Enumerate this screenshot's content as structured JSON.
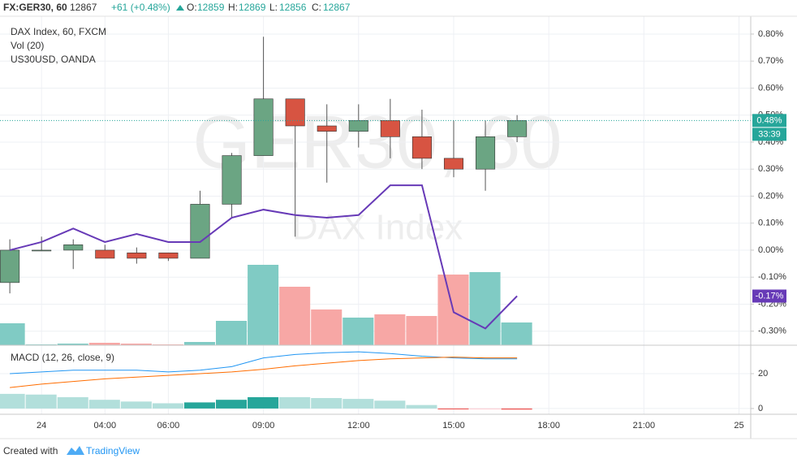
{
  "header": {
    "symbol": "FX:GER30, 60",
    "price": 12867,
    "change": "+61 (+0.48%)",
    "ohlc": [
      {
        "label": "O:",
        "value": 12859
      },
      {
        "label": "H:",
        "value": 12869
      },
      {
        "label": "L:",
        "value": 12856
      },
      {
        "label": "C:",
        "value": 12867
      }
    ]
  },
  "chart_data": {
    "type": "candlestick",
    "watermark": [
      "GER30, 60",
      "DAX Index"
    ],
    "categories": [
      null,
      null,
      null,
      null,
      null,
      null,
      null,
      null,
      null,
      null,
      null,
      null,
      null,
      null,
      null,
      null,
      null
    ],
    "xlim": [
      -0.31,
      23.37
    ],
    "xticks": [
      {
        "value": 1,
        "label": "24"
      },
      {
        "value": 3,
        "label": "04:00"
      },
      {
        "value": 5,
        "label": "06:00"
      },
      {
        "value": 8,
        "label": "09:00"
      },
      {
        "value": 11,
        "label": "12:00"
      },
      {
        "value": 14,
        "label": "15:00"
      },
      {
        "value": 17,
        "label": "18:00"
      },
      {
        "value": 20,
        "label": "21:00"
      },
      {
        "value": 23,
        "label": "25"
      }
    ],
    "ylim": [
      -0.352,
      0.866
    ],
    "yticks": [
      {
        "value": 0.8,
        "label": "0.80%"
      },
      {
        "value": 0.7,
        "label": "0.70%"
      },
      {
        "value": 0.6,
        "label": "0.60%"
      },
      {
        "value": 0.5,
        "label": "0.50%"
      },
      {
        "value": 0.4,
        "label": "0.40%"
      },
      {
        "value": 0.3,
        "label": "0.30%"
      },
      {
        "value": 0.2,
        "label": "0.20%"
      },
      {
        "value": 0.1,
        "label": "0.10%"
      },
      {
        "value": 0,
        "label": "0.00%"
      },
      {
        "value": -0.1,
        "label": "-0.10%"
      },
      {
        "value": -0.2,
        "label": "-0.20%"
      },
      {
        "value": -0.3,
        "label": "-0.30%"
      }
    ],
    "grid": true,
    "candles": {
      "name": "DAX Index, 60, FXCM",
      "up_color": "#6ba583",
      "down_color": "#d75442",
      "open": [
        -0.12,
        0.0,
        0.0,
        0.0,
        -0.01,
        -0.01,
        -0.03,
        0.17,
        0.35,
        0.56,
        0.46,
        0.44,
        0.48,
        0.42,
        0.34,
        0.3,
        0.42
      ],
      "high": [
        0.04,
        0.05,
        0.04,
        0.02,
        0.01,
        -0.01,
        0.22,
        0.36,
        0.79,
        0.56,
        0.54,
        0.54,
        0.56,
        0.52,
        0.48,
        0.48,
        0.5
      ],
      "low": [
        -0.16,
        0.0,
        -0.07,
        -0.03,
        -0.05,
        -0.04,
        -0.03,
        0.12,
        0.35,
        0.05,
        0.25,
        0.38,
        0.34,
        0.3,
        0.27,
        0.22,
        0.4
      ],
      "close": [
        0.0,
        0.0,
        0.02,
        -0.03,
        -0.03,
        -0.03,
        0.17,
        0.35,
        0.56,
        0.46,
        0.44,
        0.48,
        0.42,
        0.34,
        0.3,
        0.42,
        0.48
      ]
    },
    "volume": {
      "name": "Vol (20)",
      "up_color": "#80cbc4",
      "down_color": "#f7a7a5",
      "values": [
        27,
        1,
        2,
        3,
        2,
        1,
        4,
        30,
        99,
        72,
        44,
        34,
        38,
        36,
        87,
        90,
        28
      ]
    },
    "compare": {
      "name": "US30USD, OANDA",
      "color": "#673ab7",
      "values": [
        0.0,
        0.03,
        0.08,
        0.03,
        0.06,
        0.03,
        0.03,
        0.12,
        0.15,
        0.13,
        0.12,
        0.13,
        0.24,
        0.24,
        -0.23,
        -0.29,
        -0.17
      ]
    },
    "price_labels": [
      {
        "value": 0.48,
        "label": "0.48%",
        "color": "#26a69a"
      },
      {
        "value": -0.17,
        "label": "-0.17%",
        "color": "#673ab7"
      }
    ],
    "countdown": "33:39",
    "macd": {
      "title": "MACD (12, 26, close, 9)",
      "ylim": [
        -3.3,
        36.3
      ],
      "yticks": [
        0,
        20
      ],
      "macd_color": "#2196f3",
      "signal_color": "#ff6d00",
      "histogram_colors": [
        "#26a69a",
        "#b2dfdb",
        "#ef5350",
        "#ffcdd2"
      ],
      "macd": [
        20,
        21,
        22,
        22,
        22,
        21,
        22,
        24,
        29,
        31,
        32,
        32.5,
        31.5,
        30,
        29,
        28.5,
        28.5
      ],
      "signal": [
        12,
        14,
        15.5,
        17,
        18,
        19,
        20,
        21,
        22.5,
        24.5,
        26,
        27.5,
        28.5,
        29,
        29.5,
        29,
        29
      ],
      "histogram": [
        8.4,
        8,
        6.5,
        5,
        4,
        3,
        3.5,
        5,
        6.5,
        6.5,
        6,
        5.5,
        4.5,
        2,
        -0.5,
        -0.5,
        -0.6
      ]
    }
  },
  "footer": {
    "prefix": "Created with",
    "brand": "TradingView"
  }
}
